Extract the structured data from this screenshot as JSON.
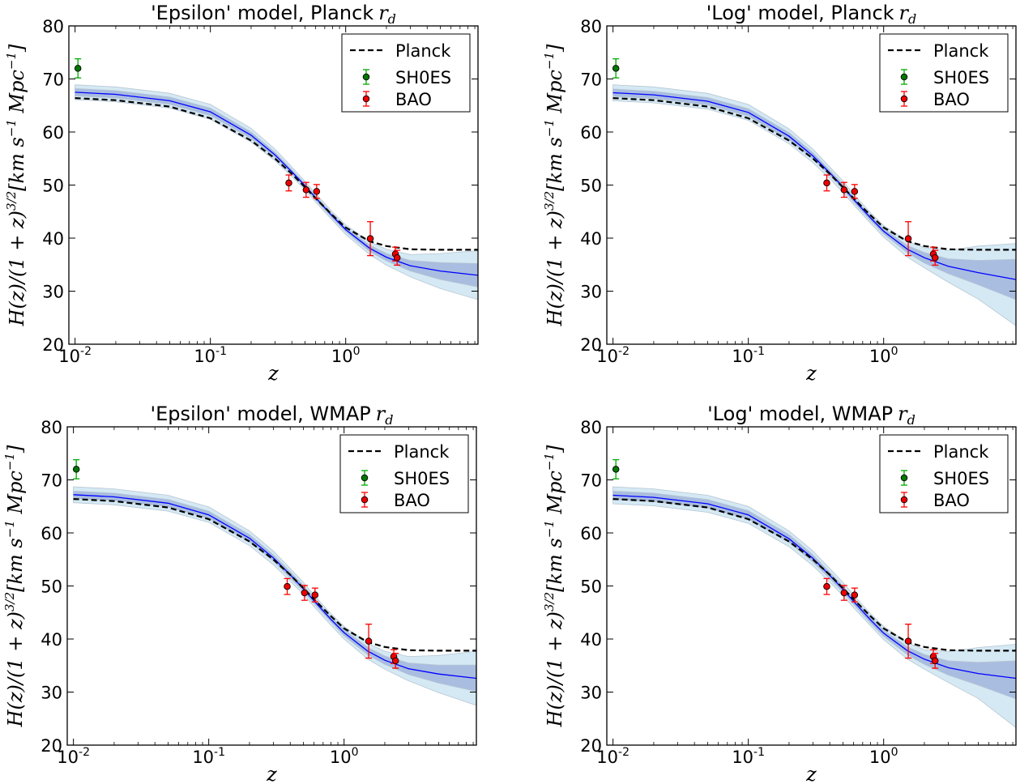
{
  "chart_data": [
    {
      "type": "line",
      "title": "'Epsilon' model, Planck",
      "title_math": "r",
      "title_sub": "d",
      "xlabel": "z",
      "ylabel": "H(z)/(1+z)^{3/2}[km s^{-1} Mpc^{-1}]",
      "xscale": "log",
      "xlim": [
        0.009,
        9.5
      ],
      "ylim": [
        20,
        80
      ],
      "yticks": [
        "20",
        "30",
        "40",
        "50",
        "60",
        "70",
        "80"
      ],
      "xticks": [
        {
          "base": "10",
          "exp": "-2"
        },
        {
          "base": "10",
          "exp": "-1"
        },
        {
          "base": "10",
          "exp": "0"
        }
      ],
      "legend": {
        "position": "top-right",
        "entries": [
          "Planck",
          "SH0ES",
          "BAO"
        ]
      },
      "z_grid": [
        0.01,
        0.02,
        0.05,
        0.1,
        0.2,
        0.3,
        0.4,
        0.5,
        0.6,
        0.8,
        1.0,
        1.5,
        2.0,
        3.0,
        5.0,
        9.5
      ],
      "series": [
        {
          "name": "Planck",
          "style": "dashed",
          "color": "#000000",
          "y": [
            66.4,
            66.0,
            64.8,
            62.6,
            58.4,
            55.0,
            52.1,
            49.6,
            47.5,
            44.3,
            42.0,
            39.4,
            38.5,
            37.9,
            37.8,
            37.8
          ]
        },
        {
          "style": "solid",
          "color": "#0000ff",
          "y": [
            67.5,
            67.1,
            65.9,
            63.8,
            59.4,
            55.7,
            52.5,
            49.9,
            47.6,
            44.1,
            41.6,
            38.1,
            36.4,
            34.8,
            33.8,
            33.0
          ]
        }
      ],
      "bands": [
        {
          "level": "2sigma",
          "color": "#d4e9f4",
          "low": [
            66.1,
            65.7,
            64.5,
            62.4,
            58.1,
            54.6,
            51.6,
            49.1,
            46.8,
            43.3,
            40.7,
            36.9,
            34.9,
            32.7,
            30.5,
            28.4
          ],
          "high": [
            68.9,
            68.5,
            67.3,
            65.2,
            60.7,
            56.8,
            53.4,
            50.7,
            48.4,
            44.9,
            42.5,
            39.3,
            37.9,
            36.9,
            37.1,
            37.6
          ]
        },
        {
          "level": "1sigma",
          "color": "#a9bde0",
          "low": [
            66.8,
            66.4,
            65.2,
            63.1,
            58.8,
            55.2,
            52.1,
            49.5,
            47.2,
            43.7,
            41.2,
            37.5,
            35.7,
            33.8,
            32.2,
            30.8
          ],
          "high": [
            68.2,
            67.8,
            66.6,
            64.5,
            60.0,
            56.2,
            52.9,
            50.3,
            48.0,
            44.5,
            42.0,
            38.7,
            37.1,
            35.8,
            35.4,
            35.2
          ]
        }
      ],
      "points": [
        {
          "name": "SH0ES",
          "color": "#00aa00",
          "fill": "#007700",
          "data": [
            {
              "x": 0.0105,
              "y": 72.0,
              "err": 1.8
            }
          ]
        },
        {
          "name": "BAO",
          "color": "#ff0000",
          "fill": "#ee0000",
          "data": [
            {
              "x": 0.38,
              "y": 50.4,
              "err": 1.5
            },
            {
              "x": 0.51,
              "y": 49.1,
              "err": 1.4
            },
            {
              "x": 0.61,
              "y": 48.8,
              "err": 1.3
            },
            {
              "x": 1.52,
              "y": 39.9,
              "err": 3.2
            },
            {
              "x": 2.33,
              "y": 37.0,
              "err": 1.3
            },
            {
              "x": 2.4,
              "y": 36.3,
              "err": 1.4
            }
          ]
        }
      ]
    },
    {
      "type": "line",
      "title": "'Log' model, Planck",
      "title_math": "r",
      "title_sub": "d",
      "xlabel": "z",
      "ylabel": "H(z)/(1+z)^{3/2}[km s^{-1} Mpc^{-1}]",
      "xscale": "log",
      "xlim": [
        0.009,
        9.5
      ],
      "ylim": [
        20,
        80
      ],
      "yticks": [
        "20",
        "30",
        "40",
        "50",
        "60",
        "70",
        "80"
      ],
      "xticks": [
        {
          "base": "10",
          "exp": "-2"
        },
        {
          "base": "10",
          "exp": "-1"
        },
        {
          "base": "10",
          "exp": "0"
        }
      ],
      "legend": {
        "position": "top-right",
        "entries": [
          "Planck",
          "SH0ES",
          "BAO"
        ]
      },
      "z_grid": [
        0.01,
        0.02,
        0.05,
        0.1,
        0.2,
        0.3,
        0.4,
        0.5,
        0.6,
        0.8,
        1.0,
        1.5,
        2.0,
        3.0,
        5.0,
        9.5
      ],
      "series": [
        {
          "name": "Planck",
          "style": "dashed",
          "color": "#000000",
          "y": [
            66.4,
            66.0,
            64.8,
            62.6,
            58.4,
            55.0,
            52.1,
            49.6,
            47.5,
            44.3,
            42.0,
            39.4,
            38.5,
            37.9,
            37.8,
            37.8
          ]
        },
        {
          "style": "solid",
          "color": "#0000ff",
          "y": [
            67.4,
            67.0,
            65.8,
            63.7,
            59.2,
            55.5,
            52.3,
            49.7,
            47.3,
            43.8,
            41.3,
            37.9,
            36.3,
            34.7,
            33.5,
            32.2
          ]
        }
      ],
      "bands": [
        {
          "level": "2sigma",
          "color": "#d4e9f4",
          "low": [
            65.9,
            65.5,
            64.3,
            62.2,
            57.8,
            54.2,
            51.2,
            48.6,
            46.3,
            42.8,
            40.2,
            36.4,
            34.4,
            31.7,
            28.5,
            23.5
          ],
          "high": [
            68.9,
            68.5,
            67.3,
            65.2,
            60.6,
            56.8,
            53.4,
            50.8,
            48.3,
            44.8,
            42.4,
            39.4,
            38.2,
            37.7,
            38.5,
            39.0
          ]
        },
        {
          "level": "1sigma",
          "color": "#a9bde0",
          "low": [
            66.7,
            66.3,
            65.1,
            63.0,
            58.5,
            54.9,
            51.8,
            49.2,
            46.8,
            43.3,
            40.8,
            37.2,
            35.3,
            33.3,
            31.2,
            28.4
          ],
          "high": [
            68.1,
            67.7,
            66.5,
            64.4,
            59.9,
            56.1,
            52.8,
            50.2,
            47.8,
            44.3,
            41.8,
            38.6,
            37.3,
            36.1,
            35.8,
            36.0
          ]
        }
      ],
      "points": [
        {
          "name": "SH0ES",
          "color": "#00aa00",
          "fill": "#007700",
          "data": [
            {
              "x": 0.0105,
              "y": 72.0,
              "err": 1.8
            }
          ]
        },
        {
          "name": "BAO",
          "color": "#ff0000",
          "fill": "#ee0000",
          "data": [
            {
              "x": 0.38,
              "y": 50.4,
              "err": 1.5
            },
            {
              "x": 0.51,
              "y": 49.1,
              "err": 1.4
            },
            {
              "x": 0.61,
              "y": 48.8,
              "err": 1.3
            },
            {
              "x": 1.52,
              "y": 39.9,
              "err": 3.2
            },
            {
              "x": 2.33,
              "y": 37.0,
              "err": 1.3
            },
            {
              "x": 2.4,
              "y": 36.3,
              "err": 1.4
            }
          ]
        }
      ]
    },
    {
      "type": "line",
      "title": "'Epsilon' model, WMAP",
      "title_math": "r",
      "title_sub": "d",
      "xlabel": "z",
      "ylabel": "H(z)/(1+z)^{3/2}[km s^{-1} Mpc^{-1}]",
      "xscale": "log",
      "xlim": [
        0.009,
        9.5
      ],
      "ylim": [
        20,
        80
      ],
      "yticks": [
        "20",
        "30",
        "40",
        "50",
        "60",
        "70",
        "80"
      ],
      "xticks": [
        {
          "base": "10",
          "exp": "-2"
        },
        {
          "base": "10",
          "exp": "-1"
        },
        {
          "base": "10",
          "exp": "0"
        }
      ],
      "legend": {
        "position": "top-right",
        "entries": [
          "Planck",
          "SH0ES",
          "BAO"
        ]
      },
      "z_grid": [
        0.01,
        0.02,
        0.05,
        0.1,
        0.2,
        0.3,
        0.4,
        0.5,
        0.6,
        0.8,
        1.0,
        1.5,
        2.0,
        3.0,
        5.0,
        9.5
      ],
      "series": [
        {
          "name": "Planck",
          "style": "dashed",
          "color": "#000000",
          "y": [
            66.4,
            66.0,
            64.8,
            62.6,
            58.4,
            55.0,
            52.1,
            49.6,
            47.5,
            44.3,
            42.0,
            39.4,
            38.5,
            37.9,
            37.8,
            37.8
          ]
        },
        {
          "style": "solid",
          "color": "#0000ff",
          "y": [
            67.2,
            66.8,
            65.6,
            63.4,
            59.0,
            55.3,
            52.1,
            49.5,
            47.2,
            43.7,
            41.2,
            37.7,
            36.0,
            34.4,
            33.4,
            32.6
          ]
        }
      ],
      "bands": [
        {
          "level": "2sigma",
          "color": "#d4e9f4",
          "low": [
            65.7,
            65.3,
            64.1,
            62.0,
            57.6,
            54.0,
            50.9,
            48.4,
            46.1,
            42.6,
            40.0,
            36.2,
            34.3,
            32.1,
            29.9,
            27.5
          ],
          "high": [
            68.7,
            68.3,
            67.1,
            64.9,
            60.4,
            56.6,
            53.3,
            50.7,
            48.3,
            44.8,
            42.4,
            39.2,
            37.7,
            36.7,
            36.9,
            37.7
          ]
        },
        {
          "level": "1sigma",
          "color": "#a9bde0",
          "low": [
            66.5,
            66.1,
            64.9,
            62.7,
            58.3,
            54.7,
            51.5,
            49.0,
            46.7,
            43.2,
            40.6,
            37.0,
            35.2,
            33.3,
            31.7,
            30.1
          ],
          "high": [
            67.9,
            67.5,
            66.3,
            64.1,
            59.7,
            55.9,
            52.7,
            50.1,
            47.8,
            44.2,
            41.8,
            38.4,
            36.8,
            35.5,
            35.1,
            35.1
          ]
        }
      ],
      "points": [
        {
          "name": "SH0ES",
          "color": "#00aa00",
          "fill": "#007700",
          "data": [
            {
              "x": 0.0105,
              "y": 72.0,
              "err": 1.8
            }
          ]
        },
        {
          "name": "BAO",
          "color": "#ff0000",
          "fill": "#ee0000",
          "data": [
            {
              "x": 0.38,
              "y": 49.9,
              "err": 1.5
            },
            {
              "x": 0.51,
              "y": 48.7,
              "err": 1.4
            },
            {
              "x": 0.61,
              "y": 48.3,
              "err": 1.3
            },
            {
              "x": 1.52,
              "y": 39.6,
              "err": 3.2
            },
            {
              "x": 2.33,
              "y": 36.7,
              "err": 1.3
            },
            {
              "x": 2.4,
              "y": 35.9,
              "err": 1.4
            }
          ]
        }
      ]
    },
    {
      "type": "line",
      "title": "'Log' model, WMAP",
      "title_math": "r",
      "title_sub": "d",
      "xlabel": "z",
      "ylabel": "H(z)/(1+z)^{3/2}[km s^{-1} Mpc^{-1}]",
      "xscale": "log",
      "xlim": [
        0.009,
        9.5
      ],
      "ylim": [
        20,
        80
      ],
      "yticks": [
        "20",
        "30",
        "40",
        "50",
        "60",
        "70",
        "80"
      ],
      "xticks": [
        {
          "base": "10",
          "exp": "-2"
        },
        {
          "base": "10",
          "exp": "-1"
        },
        {
          "base": "10",
          "exp": "0"
        }
      ],
      "legend": {
        "position": "top-right",
        "entries": [
          "Planck",
          "SH0ES",
          "BAO"
        ]
      },
      "z_grid": [
        0.01,
        0.02,
        0.05,
        0.1,
        0.2,
        0.3,
        0.4,
        0.5,
        0.6,
        0.8,
        1.0,
        1.5,
        2.0,
        3.0,
        5.0,
        9.5
      ],
      "series": [
        {
          "name": "Planck",
          "style": "dashed",
          "color": "#000000",
          "y": [
            66.4,
            66.0,
            64.8,
            62.6,
            58.4,
            55.0,
            52.1,
            49.6,
            47.5,
            44.3,
            42.0,
            39.4,
            38.5,
            37.9,
            37.8,
            37.8
          ]
        },
        {
          "style": "solid",
          "color": "#0000ff",
          "y": [
            67.1,
            66.7,
            65.5,
            63.4,
            58.9,
            55.2,
            52.0,
            49.4,
            47.1,
            43.6,
            41.1,
            37.8,
            36.2,
            34.6,
            33.5,
            32.6
          ]
        }
      ],
      "bands": [
        {
          "level": "2sigma",
          "color": "#d4e9f4",
          "low": [
            65.5,
            65.1,
            63.9,
            61.8,
            57.4,
            53.8,
            50.7,
            48.2,
            45.9,
            42.5,
            39.9,
            36.2,
            34.3,
            31.8,
            28.8,
            23.3
          ],
          "high": [
            68.7,
            68.3,
            67.1,
            65.0,
            60.4,
            56.6,
            53.3,
            50.7,
            48.3,
            44.8,
            42.4,
            39.3,
            38.0,
            37.6,
            38.4,
            39.0
          ]
        },
        {
          "level": "1sigma",
          "color": "#a9bde0",
          "low": [
            66.3,
            65.9,
            64.7,
            62.6,
            58.2,
            54.5,
            51.4,
            48.8,
            46.5,
            43.0,
            40.5,
            37.0,
            35.2,
            33.2,
            31.3,
            28.7
          ],
          "high": [
            67.9,
            67.5,
            66.3,
            64.2,
            59.7,
            55.9,
            52.6,
            50.0,
            47.7,
            44.2,
            41.7,
            38.5,
            37.1,
            35.9,
            35.6,
            35.9
          ]
        }
      ],
      "points": [
        {
          "name": "SH0ES",
          "color": "#00aa00",
          "fill": "#007700",
          "data": [
            {
              "x": 0.0105,
              "y": 72.0,
              "err": 1.8
            }
          ]
        },
        {
          "name": "BAO",
          "color": "#ff0000",
          "fill": "#ee0000",
          "data": [
            {
              "x": 0.38,
              "y": 49.9,
              "err": 1.5
            },
            {
              "x": 0.51,
              "y": 48.7,
              "err": 1.4
            },
            {
              "x": 0.61,
              "y": 48.3,
              "err": 1.3
            },
            {
              "x": 1.52,
              "y": 39.6,
              "err": 3.2
            },
            {
              "x": 2.33,
              "y": 36.7,
              "err": 1.3
            },
            {
              "x": 2.4,
              "y": 35.9,
              "err": 1.4
            }
          ]
        }
      ]
    }
  ]
}
